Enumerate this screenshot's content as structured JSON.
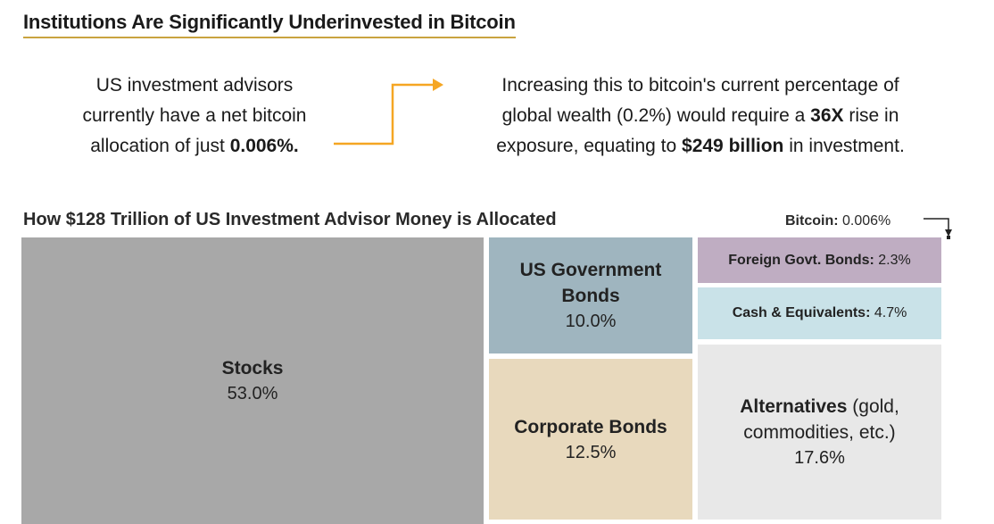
{
  "title": "Institutions Are Significantly Underinvested in Bitcoin",
  "callout_left": {
    "line1": "US investment advisors",
    "line2": "currently have a net bitcoin",
    "line3_prefix": "allocation of just ",
    "line3_bold": "0.006%."
  },
  "callout_right": {
    "line1": "Increasing this to bitcoin's current percentage of",
    "line2_prefix": "global wealth (0.2%) would require a ",
    "line2_bold": "36X",
    "line2_suffix": " rise in",
    "line3_prefix": "exposure, equating to ",
    "line3_bold": "$249 billion",
    "line3_suffix": " in investment."
  },
  "colors": {
    "accent_line": "#c9a33f",
    "arrow": "#f5a623",
    "stocks": "#a8a8a8",
    "us_gov": "#9fb5bf",
    "corporate": "#e8d9bd",
    "foreign": "#bfadc2",
    "cash": "#c9e2e8",
    "alternatives": "#e8e8e8"
  },
  "chart_data": {
    "type": "treemap",
    "title": "How $128 Trillion of US Investment Advisor Money is Allocated",
    "unit": "%",
    "items": [
      {
        "name": "Stocks",
        "value": 53.0,
        "label": "53.0%"
      },
      {
        "name": "US Government Bonds",
        "value": 10.0,
        "label": "10.0%"
      },
      {
        "name": "Corporate Bonds",
        "value": 12.5,
        "label": "12.5%"
      },
      {
        "name": "Foreign Govt. Bonds:",
        "value": 2.3,
        "label": "2.3%"
      },
      {
        "name": "Cash & Equivalents:",
        "value": 4.7,
        "label": "4.7%"
      },
      {
        "name": "Alternatives",
        "name_suffix": "(gold, commodities, etc.)",
        "value": 17.6,
        "label": "17.6%"
      },
      {
        "name": "Bitcoin:",
        "value": 0.006,
        "label": "0.006%"
      }
    ]
  }
}
